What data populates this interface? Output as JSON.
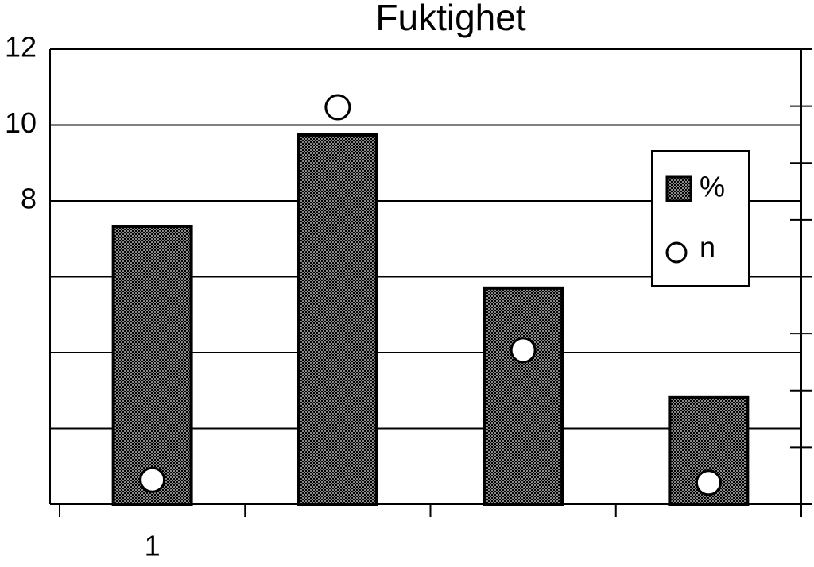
{
  "chart_data": {
    "type": "bar",
    "title": "Fuktighet",
    "categories": [
      "1",
      null,
      null,
      null
    ],
    "series": [
      {
        "name": "%",
        "color": "#8a8a8a",
        "values": [
          7.33,
          9.74,
          5.7,
          2.81
        ]
      },
      {
        "name": "n",
        "type": "scatter",
        "axis": "y2",
        "color": "#ffffff",
        "values": [
          0.43,
          6.98,
          2.71,
          0.38
        ]
      }
    ],
    "ylim": [
      0,
      12
    ],
    "yticks": [
      {
        "value": 0,
        "label": null
      },
      {
        "value": 2,
        "label": null
      },
      {
        "value": 4,
        "label": null
      },
      {
        "value": 6,
        "label": null
      },
      8,
      10,
      12
    ],
    "y2lim": [
      0,
      8
    ],
    "y2ticks": [
      {
        "value": 0,
        "label": null
      },
      {
        "value": 1,
        "label": null
      },
      {
        "value": 2,
        "label": null
      },
      {
        "value": 3,
        "label": null
      },
      {
        "value": 4,
        "label": null
      },
      {
        "value": 5,
        "label": null
      },
      {
        "value": 6,
        "label": null
      },
      {
        "value": 7,
        "label": null
      },
      {
        "value": 8,
        "label": null
      }
    ],
    "grid": true,
    "legend": "right"
  }
}
